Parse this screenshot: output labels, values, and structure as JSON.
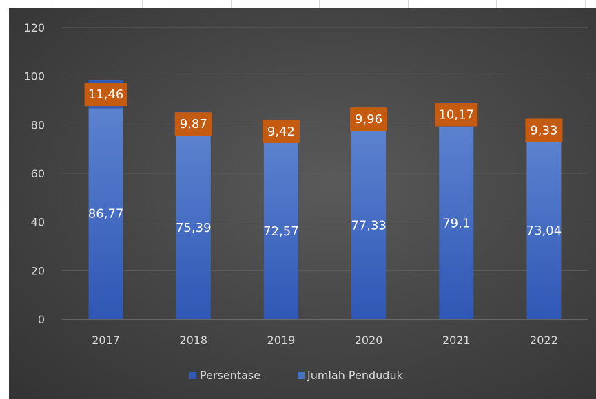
{
  "chart_data": {
    "type": "bar",
    "stacked": true,
    "categories": [
      "2017",
      "2018",
      "2019",
      "2020",
      "2021",
      "2022"
    ],
    "series": [
      {
        "name": "Persentase",
        "values": [
          11.46,
          9.87,
          9.42,
          9.96,
          10.17,
          9.33
        ],
        "labels": [
          "11,46",
          "9,87",
          "9,42",
          "9,96",
          "10,17",
          "9,33"
        ],
        "color": "#2f5bb7",
        "label_color": "#c55a11"
      },
      {
        "name": "Jumlah Penduduk",
        "values": [
          86.77,
          75.39,
          72.57,
          77.33,
          79.1,
          73.04
        ],
        "labels": [
          "86,77",
          "75,39",
          "72,57",
          "77,33",
          "79,1",
          "73,04"
        ],
        "color": "#4472c4"
      }
    ],
    "ylim": [
      0,
      120
    ],
    "yticks": [
      "0",
      "20",
      "40",
      "60",
      "80",
      "100",
      "120"
    ],
    "grid": true,
    "legend": "bottom",
    "background": "#444444"
  }
}
